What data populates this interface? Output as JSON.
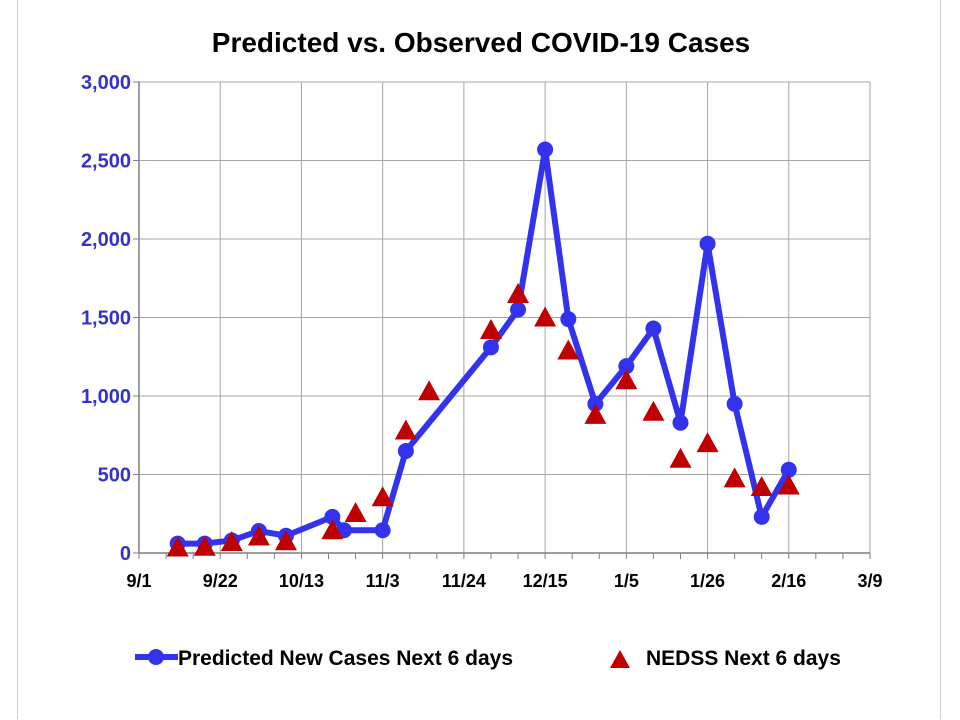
{
  "chart_data": {
    "type": "line",
    "title": "Predicted vs. Observed COVID-19 Cases",
    "xlabel": "",
    "ylabel": "",
    "x_ticks": [
      "9/1",
      "9/22",
      "10/13",
      "11/3",
      "11/24",
      "12/15",
      "1/5",
      "1/26",
      "2/16",
      "3/9"
    ],
    "y_ticks": [
      "0",
      "500",
      "1,000",
      "1,500",
      "2,000",
      "2,500",
      "3,000"
    ],
    "ylim": [
      0,
      3000
    ],
    "xlim": [
      "9/1",
      "3/9"
    ],
    "grid": true,
    "legend_position": "bottom",
    "series": [
      {
        "name": "Predicted New Cases Next 6 days",
        "style": "line-with-circle-markers",
        "color": "#3333ee",
        "points": [
          [
            "9/11",
            60
          ],
          [
            "9/18",
            60
          ],
          [
            "9/25",
            80
          ],
          [
            "10/2",
            140
          ],
          [
            "10/9",
            110
          ],
          [
            "10/21",
            230
          ],
          [
            "10/24",
            145
          ],
          [
            "11/3",
            145
          ],
          [
            "11/9",
            650
          ],
          [
            "12/1",
            1310
          ],
          [
            "12/8",
            1550
          ],
          [
            "12/15",
            2570
          ],
          [
            "12/21",
            1490
          ],
          [
            "12/28",
            950
          ],
          [
            "1/5",
            1190
          ],
          [
            "1/12",
            1430
          ],
          [
            "1/19",
            830
          ],
          [
            "1/26",
            1970
          ],
          [
            "2/2",
            950
          ],
          [
            "2/9",
            230
          ],
          [
            "2/16",
            530
          ]
        ]
      },
      {
        "name": "NEDSS Next 6 days",
        "style": "triangle-markers",
        "color": "#c00000",
        "points": [
          [
            "9/11",
            35
          ],
          [
            "9/18",
            40
          ],
          [
            "9/25",
            70
          ],
          [
            "10/2",
            105
          ],
          [
            "10/9",
            75
          ],
          [
            "10/21",
            145
          ],
          [
            "10/27",
            255
          ],
          [
            "11/3",
            355
          ],
          [
            "11/9",
            780
          ],
          [
            "11/15",
            1030
          ],
          [
            "12/1",
            1420
          ],
          [
            "12/8",
            1650
          ],
          [
            "12/15",
            1500
          ],
          [
            "12/21",
            1290
          ],
          [
            "12/28",
            880
          ],
          [
            "1/5",
            1100
          ],
          [
            "1/12",
            900
          ],
          [
            "1/19",
            600
          ],
          [
            "1/26",
            700
          ],
          [
            "2/2",
            475
          ],
          [
            "2/9",
            420
          ],
          [
            "2/16",
            430
          ]
        ]
      }
    ]
  },
  "style": {
    "axis_label_color": "#3333cc",
    "grid_color": "#a6a6a6",
    "axis_color": "#7f7f7f",
    "title_color": "#000000"
  }
}
